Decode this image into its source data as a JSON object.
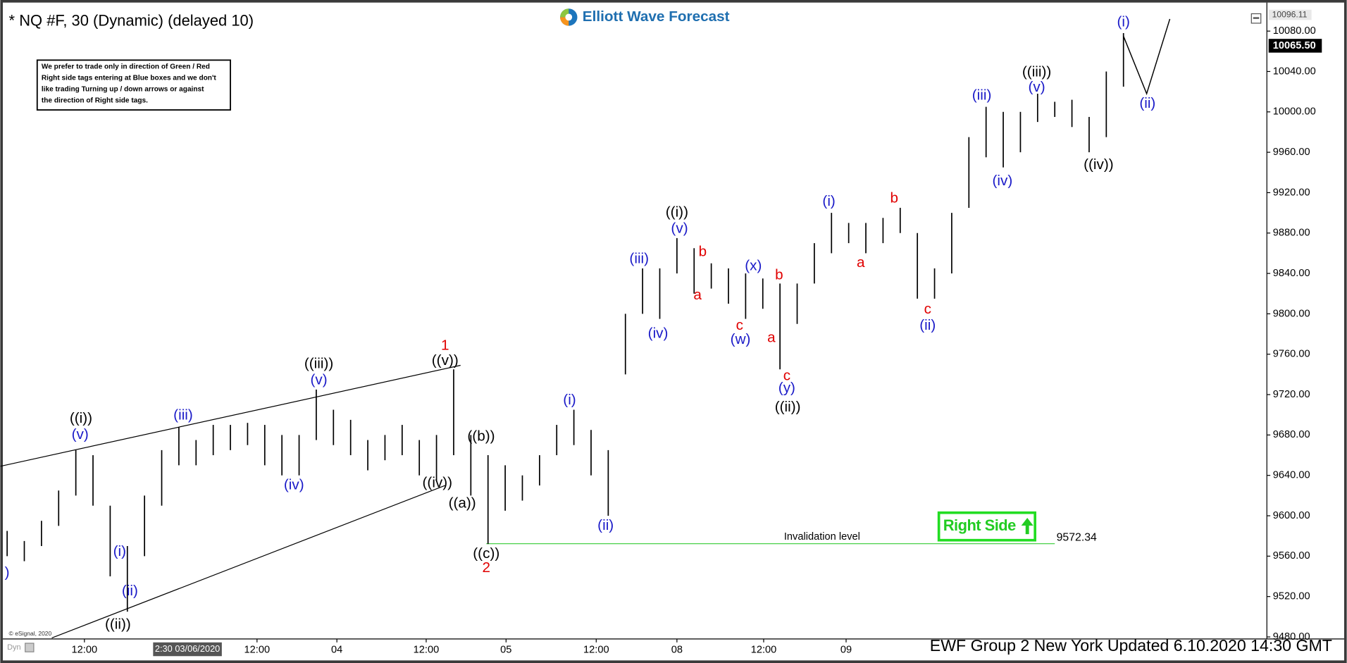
{
  "chart_data": {
    "type": "range_bar",
    "title": "* NQ #F, 30 (Dynamic) (delayed 10)",
    "logo": "Elliott Wave Forecast",
    "note": [
      "We prefer to trade only in direction of Green / Red",
      "Right side tags entering at Blue boxes and we don't",
      "like trading Turning up / down arrows or against",
      "the direction of Right side tags."
    ],
    "right_side": "Right Side",
    "footer": "EWF Group 2 New York Updated 6.10.2020 14:30 GMT",
    "copyright": "© eSignal, 2020",
    "dyn": "Dyn",
    "cursor_label": "2:30 03/06/2020",
    "color": "#000000",
    "high": [
      9585,
      9575,
      9595,
      9625,
      9665,
      9660,
      9610,
      9570,
      9620,
      9665,
      9688,
      9675,
      9690,
      9690,
      9692,
      9690,
      9680,
      9680,
      9725,
      9705,
      9695,
      9675,
      9680,
      9690,
      9675,
      9680,
      9745,
      9680,
      9660,
      9650,
      9640,
      9660,
      9690,
      9705,
      9685,
      9665,
      9800,
      9845,
      9845,
      9875,
      9865,
      9850,
      9845,
      9840,
      9835,
      9830,
      9830,
      9870,
      9900,
      9890,
      9890,
      9895,
      9905,
      9880,
      9845,
      9900,
      9975,
      10005,
      10000,
      10000,
      10018,
      10010,
      10012,
      9995,
      10040,
      10078
    ],
    "low": [
      9560,
      9555,
      9570,
      9590,
      9620,
      9610,
      9540,
      9505,
      9560,
      9610,
      9650,
      9650,
      9660,
      9665,
      9670,
      9650,
      9640,
      9640,
      9675,
      9670,
      9660,
      9645,
      9655,
      9660,
      9640,
      9635,
      9660,
      9620,
      9572,
      9605,
      9615,
      9630,
      9660,
      9670,
      9640,
      9600,
      9740,
      9800,
      9795,
      9840,
      9820,
      9825,
      9810,
      9795,
      9805,
      9745,
      9790,
      9830,
      9860,
      9870,
      9860,
      9870,
      9880,
      9815,
      9815,
      9840,
      9905,
      9955,
      9945,
      9960,
      9990,
      9995,
      9985,
      9960,
      9975,
      10025
    ],
    "xlim": [
      -0.4,
      73.35
    ],
    "xticks": [
      {
        "value": 4.5,
        "label": "12:00"
      },
      {
        "value": 14.55,
        "label": "12:00"
      },
      {
        "value": 19.2,
        "label": "04"
      },
      {
        "value": 24.4,
        "label": "12:00"
      },
      {
        "value": 29.05,
        "label": "05"
      },
      {
        "value": 34.3,
        "label": "12:00"
      },
      {
        "value": 39,
        "label": "08"
      },
      {
        "value": 44.05,
        "label": "12:00"
      },
      {
        "value": 48.85,
        "label": "09"
      }
    ],
    "ylim": [
      9478,
      10104
    ],
    "yticks": [
      {
        "value": 9480,
        "label": "9480.00"
      },
      {
        "value": 9520,
        "label": "9520.00"
      },
      {
        "value": 9560,
        "label": "9560.00"
      },
      {
        "value": 9600,
        "label": "9600.00"
      },
      {
        "value": 9640,
        "label": "9640.00"
      },
      {
        "value": 9680,
        "label": "9680.00"
      },
      {
        "value": 9720,
        "label": "9720.00"
      },
      {
        "value": 9760,
        "label": "9760.00"
      },
      {
        "value": 9800,
        "label": "9800.00"
      },
      {
        "value": 9840,
        "label": "9840.00"
      },
      {
        "value": 9880,
        "label": "9880.00"
      },
      {
        "value": 9920,
        "label": "9920.00"
      },
      {
        "value": 9960,
        "label": "9960.00"
      },
      {
        "value": 10000,
        "label": "10000.00"
      },
      {
        "value": 10040,
        "label": "10040.00"
      },
      {
        "value": 10080,
        "label": "10080.00"
      }
    ],
    "high_marker": {
      "value": 10096.11,
      "label": "10096.11"
    },
    "last_price": {
      "value": 10065.5,
      "label": "10065.50"
    },
    "grid": false,
    "trendlines": [
      {
        "x": [
          -0.4,
          26.4
        ],
        "y": [
          9649,
          9749
        ]
      },
      {
        "x": [
          2.6,
          25.5
        ],
        "y": [
          9479,
          9630
        ]
      }
    ],
    "projection": {
      "x": [
        65,
        66.35,
        67.7
      ],
      "y": [
        10075,
        10018,
        10092
      ]
    },
    "invalidation": {
      "label": "Invalidation level",
      "value": 9572.34,
      "x": [
        27.9,
        61
      ]
    },
    "annotations": [
      {
        "text": ")",
        "color": "#1a1ac8",
        "x": 0,
        "y": 9543
      },
      {
        "text": "((i))",
        "color": "#000000",
        "x": 4.3,
        "y": 9696
      },
      {
        "text": "(v)",
        "color": "#1a1ac8",
        "x": 4.25,
        "y": 9680
      },
      {
        "text": "(i)",
        "color": "#1a1ac8",
        "x": 6.55,
        "y": 9564
      },
      {
        "text": "(ii)",
        "color": "#1a1ac8",
        "x": 7.15,
        "y": 9525
      },
      {
        "text": "((ii))",
        "color": "#000000",
        "x": 6.45,
        "y": 9492
      },
      {
        "text": "(iii)",
        "color": "#1a1ac8",
        "x": 10.25,
        "y": 9699
      },
      {
        "text": "(iv)",
        "color": "#1a1ac8",
        "x": 16.7,
        "y": 9630
      },
      {
        "text": "((iii))",
        "color": "#000000",
        "x": 18.15,
        "y": 9750
      },
      {
        "text": "(v)",
        "color": "#1a1ac8",
        "x": 18.15,
        "y": 9734
      },
      {
        "text": "1",
        "color": "#e00000",
        "x": 25.5,
        "y": 9768
      },
      {
        "text": "((v))",
        "color": "#000000",
        "x": 25.5,
        "y": 9753
      },
      {
        "text": "((iv))",
        "color": "#000000",
        "x": 25.05,
        "y": 9632
      },
      {
        "text": "((a))",
        "color": "#000000",
        "x": 26.5,
        "y": 9612
      },
      {
        "text": "((b))",
        "color": "#000000",
        "x": 27.6,
        "y": 9678
      },
      {
        "text": "((c))",
        "color": "#000000",
        "x": 27.9,
        "y": 9562
      },
      {
        "text": "2",
        "color": "#e00000",
        "x": 27.9,
        "y": 9548
      },
      {
        "text": "(i)",
        "color": "#1a1ac8",
        "x": 32.75,
        "y": 9714
      },
      {
        "text": "(ii)",
        "color": "#1a1ac8",
        "x": 34.85,
        "y": 9590
      },
      {
        "text": "(iii)",
        "color": "#1a1ac8",
        "x": 36.8,
        "y": 9854
      },
      {
        "text": "(iv)",
        "color": "#1a1ac8",
        "x": 37.9,
        "y": 9780
      },
      {
        "text": "((i))",
        "color": "#000000",
        "x": 39,
        "y": 9900
      },
      {
        "text": "(v)",
        "color": "#1a1ac8",
        "x": 39.15,
        "y": 9884
      },
      {
        "text": "b",
        "color": "#e00000",
        "x": 40.5,
        "y": 9861
      },
      {
        "text": "a",
        "color": "#e00000",
        "x": 40.2,
        "y": 9818
      },
      {
        "text": "c",
        "color": "#e00000",
        "x": 42.65,
        "y": 9788
      },
      {
        "text": "(w)",
        "color": "#1a1ac8",
        "x": 42.7,
        "y": 9774
      },
      {
        "text": "(x)",
        "color": "#1a1ac8",
        "x": 43.45,
        "y": 9847
      },
      {
        "text": "b",
        "color": "#e00000",
        "x": 44.95,
        "y": 9838
      },
      {
        "text": "a",
        "color": "#e00000",
        "x": 44.5,
        "y": 9776
      },
      {
        "text": "c",
        "color": "#e00000",
        "x": 45.4,
        "y": 9738
      },
      {
        "text": "(y)",
        "color": "#1a1ac8",
        "x": 45.4,
        "y": 9726
      },
      {
        "text": "((ii))",
        "color": "#000000",
        "x": 45.45,
        "y": 9707
      },
      {
        "text": "(i)",
        "color": "#1a1ac8",
        "x": 47.85,
        "y": 9911
      },
      {
        "text": "a",
        "color": "#e00000",
        "x": 49.7,
        "y": 9850
      },
      {
        "text": "b",
        "color": "#e00000",
        "x": 51.65,
        "y": 9914
      },
      {
        "text": "c",
        "color": "#e00000",
        "x": 53.6,
        "y": 9804
      },
      {
        "text": "(ii)",
        "color": "#1a1ac8",
        "x": 53.6,
        "y": 9788
      },
      {
        "text": "(iii)",
        "color": "#1a1ac8",
        "x": 56.75,
        "y": 10016
      },
      {
        "text": "(iv)",
        "color": "#1a1ac8",
        "x": 57.95,
        "y": 9931
      },
      {
        "text": "((iii))",
        "color": "#000000",
        "x": 59.95,
        "y": 10039
      },
      {
        "text": "(v)",
        "color": "#1a1ac8",
        "x": 59.95,
        "y": 10024
      },
      {
        "text": "((iv))",
        "color": "#000000",
        "x": 63.55,
        "y": 9947
      },
      {
        "text": "(i)",
        "color": "#1a1ac8",
        "x": 65,
        "y": 10088.5
      },
      {
        "text": "(ii)",
        "color": "#1a1ac8",
        "x": 66.4,
        "y": 10008
      }
    ]
  }
}
